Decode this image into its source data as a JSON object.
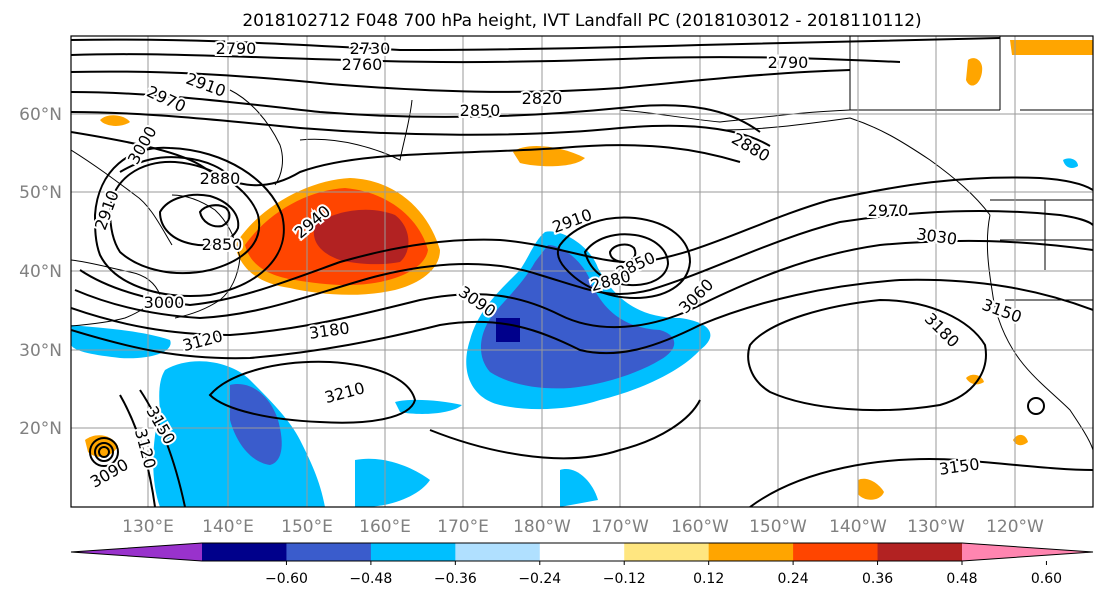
{
  "title": "2018102712 F048 700 hPa height, IVT Landfall PC (2018103012 - 2018110112)",
  "lat_labels": [
    "60°N",
    "50°N",
    "40°N",
    "30°N",
    "20°N"
  ],
  "lon_labels": [
    "130°E",
    "140°E",
    "150°E",
    "160°E",
    "170°E",
    "180°W",
    "170°W",
    "160°W",
    "150°W",
    "140°W",
    "130°W",
    "120°W"
  ],
  "colorbar": {
    "colors": [
      "#9932cc",
      "#00008b",
      "#3a5ccc",
      "#00bfff",
      "#b0e0ff",
      "#ffffff",
      "#ffe680",
      "#ffa500",
      "#ff4500",
      "#b22222",
      "#ff85b0"
    ],
    "ticks": [
      "−0.60",
      "−0.48",
      "−0.36",
      "−0.24",
      "−0.12",
      "0.12",
      "0.24",
      "0.36",
      "0.48",
      "0.60"
    ]
  },
  "contour_labels": [
    "2790",
    "2730",
    "2760",
    "2790",
    "2910",
    "2820",
    "2850",
    "2970",
    "3000",
    "2880",
    "2880",
    "2910",
    "2940",
    "2850",
    "2910",
    "2970",
    "2850",
    "2880",
    "3030",
    "3000",
    "3090",
    "3060",
    "3120",
    "3180",
    "3150",
    "3180",
    "3210",
    "3150",
    "3120",
    "3090",
    "3150"
  ]
}
